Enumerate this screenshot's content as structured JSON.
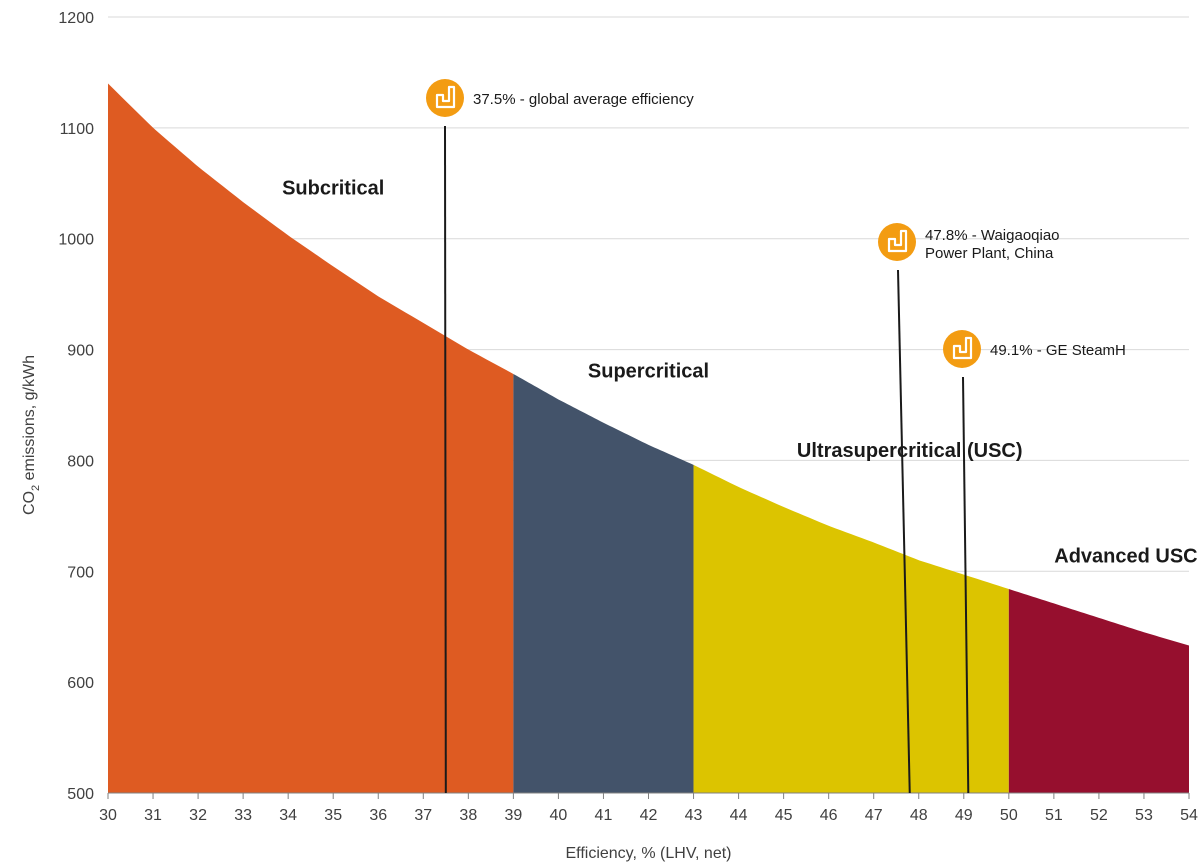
{
  "chart_data": {
    "type": "area",
    "xlabel": "Efficiency, % (LHV, net)",
    "ylabel_main": "CO",
    "ylabel_sub": "2",
    "ylabel_rest": " emissions, g/kWh",
    "xlim": [
      30,
      54
    ],
    "ylim": [
      500,
      1200
    ],
    "xticks": [
      30,
      31,
      32,
      33,
      34,
      35,
      36,
      37,
      38,
      39,
      40,
      41,
      42,
      43,
      44,
      45,
      46,
      47,
      48,
      49,
      50,
      51,
      52,
      53,
      54
    ],
    "yticks": [
      500,
      600,
      700,
      800,
      900,
      1000,
      1100,
      1200
    ],
    "grid": true,
    "curve": {
      "x": [
        30,
        31,
        32,
        33,
        34,
        35,
        36,
        37,
        38,
        39,
        40,
        41,
        42,
        43,
        44,
        45,
        46,
        47,
        48,
        49,
        50,
        51,
        52,
        53,
        54
      ],
      "y": [
        1140,
        1100,
        1065,
        1033,
        1003,
        975,
        948,
        924,
        900,
        878,
        855,
        834,
        814,
        796,
        776,
        758,
        741,
        726,
        710,
        697,
        684,
        671,
        658,
        645,
        633
      ]
    },
    "regions": [
      {
        "name": "Subcritical",
        "x_start": 30,
        "x_end": 39,
        "color": "#DE5B22",
        "label_x": 35,
        "label_y": 1040
      },
      {
        "name": "Supercritical",
        "x_start": 39,
        "x_end": 43,
        "color": "#43536A",
        "label_x": 42,
        "label_y": 875
      },
      {
        "name": "Ultrasupercritical (USC)",
        "x_start": 43,
        "x_end": 50,
        "color": "#DCC400",
        "label_x": 47.8,
        "label_y": 803
      },
      {
        "name": "Advanced USC",
        "x_start": 50,
        "x_end": 54,
        "color": "#960F2E",
        "label_x": 52.6,
        "label_y": 708
      }
    ],
    "annotations": [
      {
        "x": 37.5,
        "lines": [
          "37.5% - global average efficiency"
        ],
        "icon": "power-plant-icon"
      },
      {
        "x": 47.8,
        "lines": [
          "47.8% - Waigaoqiao",
          "Power Plant, China"
        ],
        "icon": "power-plant-icon"
      },
      {
        "x": 49.1,
        "lines": [
          "49.1% - GE SteamH"
        ],
        "icon": "power-plant-icon"
      }
    ],
    "colors": {
      "grid": "#d9d9d9",
      "axis": "#808080",
      "marker": "#F39C12",
      "leader": "#1a1a1a"
    }
  }
}
